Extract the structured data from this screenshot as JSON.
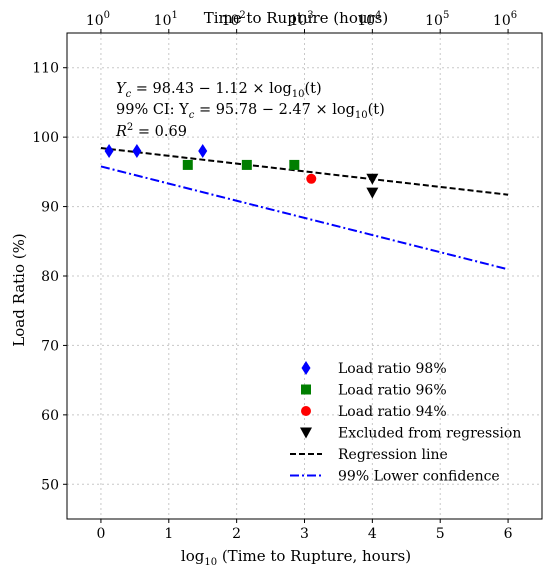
{
  "chart_data": {
    "type": "scatter",
    "xlabel_base": "log",
    "xlabel_sub": "10",
    "xlabel_rest": " (Time to Rupture, hours)",
    "ylabel": "Load Ratio (%)",
    "top_xlabel": "Time to Rupture (hours)",
    "xlim": [
      -0.5,
      6.5
    ],
    "ylim": [
      45,
      115
    ],
    "x_ticks": [
      0,
      1,
      2,
      3,
      4,
      5,
      6
    ],
    "y_ticks": [
      50,
      60,
      70,
      80,
      90,
      100,
      110
    ],
    "top_ticks": [
      {
        "base": "10",
        "exp": "0"
      },
      {
        "base": "10",
        "exp": "1"
      },
      {
        "base": "10",
        "exp": "2"
      },
      {
        "base": "10",
        "exp": "3"
      },
      {
        "base": "10",
        "exp": "4"
      },
      {
        "base": "10",
        "exp": "5"
      },
      {
        "base": "10",
        "exp": "6"
      }
    ],
    "grid": true,
    "legend_position": "lower-right",
    "annotations": {
      "line1": {
        "prefix": "Y",
        "sub": "c",
        "text": " = 98.43 − 1.12 × log",
        "sub2": "10",
        "suffix": "(t)"
      },
      "line2": {
        "prefix": "99% CI: Y",
        "sub": "c",
        "text": " = 95.78 − 2.47 × log",
        "sub2": "10",
        "suffix": "(t)"
      },
      "line3": {
        "prefix": "R",
        "sup": "2",
        "text": " = 0.69"
      }
    },
    "series": [
      {
        "name": "Load ratio 98%",
        "marker": "diamond",
        "color": "#0000ff",
        "x": [
          0.12,
          0.53,
          1.5
        ],
        "y": [
          98,
          98,
          98
        ]
      },
      {
        "name": "Load ratio 96%",
        "marker": "square",
        "color": "#007f00",
        "x": [
          1.28,
          2.15,
          2.85
        ],
        "y": [
          96,
          96,
          96
        ]
      },
      {
        "name": "Load ratio 94%",
        "marker": "circle",
        "color": "#ff0000",
        "x": [
          3.1
        ],
        "y": [
          94
        ]
      },
      {
        "name": "Excluded from regression",
        "marker": "triangle-down",
        "color": "#000000",
        "x": [
          4.0,
          4.0
        ],
        "y": [
          94,
          92
        ]
      }
    ],
    "lines": [
      {
        "name": "Regression line",
        "style": "dashed",
        "color": "#000000",
        "intercept": 98.43,
        "slope": -1.12,
        "x_range": [
          0,
          6
        ]
      },
      {
        "name": "99% Lower confidence",
        "style": "dashdot",
        "color": "#0000ff",
        "intercept": 95.78,
        "slope": -2.47,
        "x_range": [
          0,
          6
        ]
      }
    ]
  }
}
